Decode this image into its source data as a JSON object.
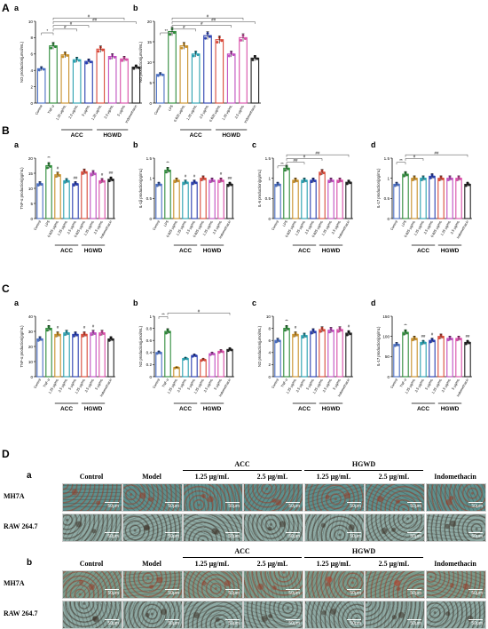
{
  "panels": {
    "A": "A",
    "B": "B",
    "C": "C",
    "D": "D"
  },
  "groups": {
    "acc": "ACC",
    "hgwd": "HGWD"
  },
  "chart_data": [
    {
      "id": "A-a",
      "type": "bar",
      "sub": "a",
      "ylabel": "NO production(μmol/mL)",
      "ylim": [
        0,
        10
      ],
      "ticks": [
        0,
        2,
        4,
        6,
        8,
        10
      ],
      "categories": [
        "Control",
        "TNF-α",
        "1.25 μg/mL",
        "2.5 μg/mL",
        "5 μg/mL",
        "1.25 μg/mL",
        "2.5 μg/mL",
        "5 μg/mL",
        "Indomethacin"
      ],
      "values": [
        4.2,
        7.0,
        5.9,
        5.3,
        5.1,
        6.6,
        5.7,
        5.4,
        4.4
      ],
      "colors": [
        "#4a6fc2",
        "#2e8b3a",
        "#c8902a",
        "#2aa0b0",
        "#2a3fb0",
        "#d94a3a",
        "#c04fc0",
        "#d84fa8",
        "#222222"
      ],
      "sig": [
        {
          "t": "*",
          "a": 0,
          "b": 1
        },
        {
          "t": "#",
          "a": 1,
          "b": 3
        },
        {
          "t": "#",
          "a": 1,
          "b": 4
        },
        {
          "t": "##",
          "a": 1,
          "b": 8
        },
        {
          "t": "#",
          "a": 1,
          "b": 7
        }
      ],
      "groups": [
        [
          2,
          4,
          "acc"
        ],
        [
          5,
          7,
          "hgwd"
        ]
      ]
    },
    {
      "id": "A-b",
      "type": "bar",
      "sub": "b",
      "ylabel": "NO production(μmol/mL)",
      "ylim": [
        0,
        20
      ],
      "ticks": [
        0,
        5,
        10,
        15,
        20
      ],
      "categories": [
        "Control",
        "LPS",
        "0.625 μg/mL",
        "1.25 μg/mL",
        "2.5 μg/mL",
        "0.625 μg/mL",
        "1.25 μg/mL",
        "2.5 μg/mL",
        "Indomethacin"
      ],
      "values": [
        7.0,
        17.5,
        14.0,
        12.0,
        16.5,
        15.5,
        12.0,
        16.0,
        11.0
      ],
      "colors": [
        "#4a6fc2",
        "#2e8b3a",
        "#c8902a",
        "#2aa0b0",
        "#2a3fb0",
        "#d94a3a",
        "#c04fc0",
        "#d84fa8",
        "#222222"
      ],
      "sig": [
        {
          "t": "**",
          "a": 0,
          "b": 1
        },
        {
          "t": "#",
          "a": 1,
          "b": 3
        },
        {
          "t": "#",
          "a": 1,
          "b": 6
        },
        {
          "t": "##",
          "a": 1,
          "b": 8
        },
        {
          "t": "#",
          "a": 1,
          "b": 7
        }
      ],
      "groups": [
        [
          2,
          4,
          "acc"
        ],
        [
          5,
          7,
          "hgwd"
        ]
      ]
    },
    {
      "id": "B-a",
      "type": "bar",
      "sub": "a",
      "ylabel": "TNF-α production(pg/mL)",
      "ylim": [
        0,
        20
      ],
      "ticks": [
        0,
        5,
        10,
        15,
        20
      ],
      "categories": [
        "Control",
        "LPS",
        "0.625 μg/mL",
        "1.25 μg/mL",
        "2.5 μg/mL",
        "0.625 μg/mL",
        "1.25 μg/mL",
        "2.5 μg/mL",
        "Indomethacin"
      ],
      "values": [
        11.5,
        17.5,
        14.5,
        12.5,
        11.5,
        15.5,
        15.0,
        12.5,
        13.0
      ],
      "colors": [
        "#4a6fc2",
        "#2e8b3a",
        "#c8902a",
        "#2aa0b0",
        "#2a3fb0",
        "#d94a3a",
        "#c04fc0",
        "#d84fa8",
        "#222222"
      ],
      "marks": [
        [
          "**",
          1
        ],
        [
          "#",
          2
        ],
        [
          "##",
          4
        ],
        [
          "#",
          7
        ],
        [
          "##",
          8
        ]
      ],
      "sig": [],
      "groups": [
        [
          2,
          4,
          "acc"
        ],
        [
          5,
          7,
          "hgwd"
        ]
      ]
    },
    {
      "id": "B-b",
      "type": "bar",
      "sub": "b",
      "ylabel": "IL-1β production(pg/mL)",
      "ylim": [
        0,
        1.5
      ],
      "ticks": [
        0,
        0.5,
        1.0,
        1.5
      ],
      "categories": [
        "Control",
        "LPS",
        "0.625 μg/mL",
        "1.25 μg/mL",
        "2.5 μg/mL",
        "0.625 μg/mL",
        "1.25 μg/mL",
        "2.5 μg/mL",
        "Indomethacin"
      ],
      "values": [
        0.85,
        1.2,
        0.95,
        0.9,
        0.9,
        1.0,
        0.95,
        0.95,
        0.85
      ],
      "colors": [
        "#4a6fc2",
        "#2e8b3a",
        "#c8902a",
        "#2aa0b0",
        "#2a3fb0",
        "#d94a3a",
        "#c04fc0",
        "#d84fa8",
        "#222222"
      ],
      "marks": [
        [
          "**",
          1
        ],
        [
          "#",
          3
        ],
        [
          "#",
          4
        ],
        [
          "#",
          7
        ],
        [
          "##",
          8
        ]
      ],
      "sig": [],
      "groups": [
        [
          2,
          4,
          "acc"
        ],
        [
          5,
          7,
          "hgwd"
        ]
      ]
    },
    {
      "id": "B-c",
      "type": "bar",
      "sub": "c",
      "ylabel": "IL-6 production(pg/mL)",
      "ylim": [
        0,
        1.5
      ],
      "ticks": [
        0,
        0.5,
        1.0,
        1.5
      ],
      "categories": [
        "Control",
        "LPS",
        "0.625 μg/mL",
        "1.25 μg/mL",
        "2.5 μg/mL",
        "0.625 μg/mL",
        "1.25 μg/mL",
        "2.5 μg/mL",
        "Indomethacin"
      ],
      "values": [
        0.85,
        1.25,
        0.95,
        0.95,
        0.95,
        1.15,
        0.95,
        0.95,
        0.9
      ],
      "colors": [
        "#4a6fc2",
        "#2e8b3a",
        "#c8902a",
        "#2aa0b0",
        "#2a3fb0",
        "#d94a3a",
        "#c04fc0",
        "#d84fa8",
        "#222222"
      ],
      "sig": [
        {
          "t": "**",
          "a": 0,
          "b": 1
        },
        {
          "t": "##",
          "a": 1,
          "b": 3
        },
        {
          "t": "#",
          "a": 1,
          "b": 5
        },
        {
          "t": "##",
          "a": 1,
          "b": 8
        }
      ],
      "groups": [
        [
          2,
          4,
          "acc"
        ],
        [
          5,
          7,
          "hgwd"
        ]
      ]
    },
    {
      "id": "B-d",
      "type": "bar",
      "sub": "d",
      "ylabel": "IL-17 production(pg/mL)",
      "ylim": [
        0,
        1.5
      ],
      "ticks": [
        0,
        0.5,
        1.0,
        1.5
      ],
      "categories": [
        "Control",
        "LPS",
        "0.625 μg/mL",
        "1.25 μg/mL",
        "2.5 μg/mL",
        "0.625 μg/mL",
        "1.25 μg/mL",
        "2.5 μg/mL",
        "Indomethacin"
      ],
      "values": [
        0.85,
        1.1,
        1.0,
        1.0,
        1.05,
        1.0,
        1.0,
        1.0,
        0.85
      ],
      "colors": [
        "#4a6fc2",
        "#2e8b3a",
        "#c8902a",
        "#2aa0b0",
        "#2a3fb0",
        "#d94a3a",
        "#c04fc0",
        "#d84fa8",
        "#222222"
      ],
      "sig": [
        {
          "t": "**",
          "a": 0,
          "b": 1
        },
        {
          "t": "#",
          "a": 1,
          "b": 3
        },
        {
          "t": "##",
          "a": 1,
          "b": 8
        }
      ],
      "groups": [
        [
          2,
          4,
          "acc"
        ],
        [
          5,
          7,
          "hgwd"
        ]
      ]
    },
    {
      "id": "C-a",
      "type": "bar",
      "sub": "a",
      "ylabel": "TNF-α production(pg/mL)",
      "ylim": [
        0,
        40
      ],
      "ticks": [
        0,
        10,
        20,
        30,
        40
      ],
      "categories": [
        "Control",
        "TNF-α",
        "1.25 μg/mL",
        "2.5 μg/mL",
        "5 μg/mL",
        "1.25 μg/mL",
        "2.5 μg/mL",
        "5 μg/mL",
        "Indomethacin"
      ],
      "values": [
        25,
        32,
        28,
        29,
        28,
        28,
        29,
        29,
        25
      ],
      "colors": [
        "#4a6fc2",
        "#2e8b3a",
        "#c8902a",
        "#2aa0b0",
        "#2a3fb0",
        "#d94a3a",
        "#c04fc0",
        "#d84fa8",
        "#222222"
      ],
      "marks": [
        [
          "**",
          1
        ],
        [
          "#",
          2
        ],
        [
          "#",
          5
        ],
        [
          "#",
          6
        ]
      ],
      "sig": [],
      "groups": [
        [
          2,
          4,
          "acc"
        ],
        [
          5,
          7,
          "hgwd"
        ]
      ]
    },
    {
      "id": "C-b",
      "type": "bar",
      "sub": "b",
      "ylabel": "NO production(μmol/mL)",
      "ylim": [
        0,
        1.0
      ],
      "ticks": [
        0,
        0.2,
        0.4,
        0.6,
        0.8,
        1.0
      ],
      "categories": [
        "Control",
        "TNF-α",
        "1.25 μg/mL",
        "2.5 μg/mL",
        "5 μg/mL",
        "1.25 μg/mL",
        "2.5 μg/mL",
        "5 μg/mL",
        "Indomethacin"
      ],
      "values": [
        0.4,
        0.75,
        0.15,
        0.3,
        0.35,
        0.28,
        0.38,
        0.42,
        0.45
      ],
      "colors": [
        "#4a6fc2",
        "#2e8b3a",
        "#c8902a",
        "#2aa0b0",
        "#2a3fb0",
        "#d94a3a",
        "#c04fc0",
        "#d84fa8",
        "#222222"
      ],
      "sig": [
        {
          "t": "**",
          "a": 0,
          "b": 1
        },
        {
          "t": "#",
          "a": 1,
          "b": 8
        }
      ],
      "groups": [
        [
          2,
          4,
          "acc"
        ],
        [
          5,
          7,
          "hgwd"
        ]
      ]
    },
    {
      "id": "C-c",
      "type": "bar",
      "sub": "c",
      "ylabel": "NO production(μmol/mL)",
      "ylim": [
        0,
        10
      ],
      "ticks": [
        0,
        2,
        4,
        6,
        8,
        10
      ],
      "categories": [
        "Control",
        "TNF-α",
        "1.25 μg/mL",
        "2.5 μg/mL",
        "5 μg/mL",
        "1.25 μg/mL",
        "2.5 μg/mL",
        "5 μg/mL",
        "Indomethacin"
      ],
      "values": [
        6.0,
        8.0,
        7.0,
        6.8,
        7.5,
        7.8,
        7.7,
        7.8,
        7.2
      ],
      "colors": [
        "#4a6fc2",
        "#2e8b3a",
        "#c8902a",
        "#2aa0b0",
        "#2a3fb0",
        "#d94a3a",
        "#c04fc0",
        "#d84fa8",
        "#222222"
      ],
      "marks": [
        [
          "**",
          1
        ],
        [
          "#",
          2
        ],
        [
          "#",
          8
        ]
      ],
      "sig": [],
      "groups": [
        [
          2,
          4,
          "acc"
        ],
        [
          5,
          7,
          "hgwd"
        ]
      ]
    },
    {
      "id": "C-d",
      "type": "bar",
      "sub": "d",
      "ylabel": "IL-17 production(pg/mL)",
      "ylim": [
        0,
        150
      ],
      "ticks": [
        0,
        50,
        100,
        150
      ],
      "categories": [
        "Control",
        "TNF-α",
        "1.25 μg/mL",
        "2.5 μg/mL",
        "5 μg/mL",
        "1.25 μg/mL",
        "2.5 μg/mL",
        "5 μg/mL",
        "Indomethacin"
      ],
      "values": [
        80,
        110,
        95,
        85,
        90,
        100,
        95,
        95,
        85
      ],
      "colors": [
        "#4a6fc2",
        "#2e8b3a",
        "#c8902a",
        "#2aa0b0",
        "#2a3fb0",
        "#d94a3a",
        "#c04fc0",
        "#d84fa8",
        "#222222"
      ],
      "marks": [
        [
          "**",
          1
        ],
        [
          "##",
          3
        ],
        [
          "#",
          4
        ],
        [
          "##",
          8
        ]
      ],
      "sig": [],
      "groups": [
        [
          2,
          4,
          "acc"
        ],
        [
          5,
          7,
          "hgwd"
        ]
      ]
    }
  ],
  "histology": {
    "columns": [
      "Control",
      "Model",
      "1.25 μg/mL",
      "2.5 μg/mL",
      "1.25 μg/mL",
      "2.5 μg/mL",
      "Indomethacin"
    ],
    "group_acc": "ACC",
    "group_hgwd": "HGWD",
    "rows": [
      "MH7A",
      "RAW 264.7"
    ],
    "scale": "50μm",
    "sub_a": "a",
    "sub_b": "b"
  }
}
